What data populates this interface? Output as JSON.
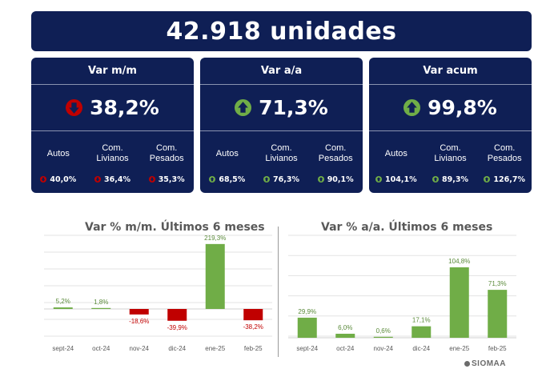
{
  "header": {
    "title": "42.918 unidades"
  },
  "colors": {
    "navy": "#0f1f55",
    "red": "#c00000",
    "green": "#70ad47",
    "text_gray": "#595959"
  },
  "cards": [
    {
      "title": "Var m/m",
      "value": "38,2%",
      "direction": "down",
      "subs": [
        {
          "label": "Autos",
          "value": "40,0%",
          "direction": "down"
        },
        {
          "label": "Com. Livianos",
          "value": "36,4%",
          "direction": "down"
        },
        {
          "label": "Com. Pesados",
          "value": "35,3%",
          "direction": "down"
        }
      ]
    },
    {
      "title": "Var a/a",
      "value": "71,3%",
      "direction": "up",
      "subs": [
        {
          "label": "Autos",
          "value": "68,5%",
          "direction": "up"
        },
        {
          "label": "Com. Livianos",
          "value": "76,3%",
          "direction": "up"
        },
        {
          "label": "Com. Pesados",
          "value": "90,1%",
          "direction": "up"
        }
      ]
    },
    {
      "title": "Var acum",
      "value": "99,8%",
      "direction": "up",
      "subs": [
        {
          "label": "Autos",
          "value": "104,1%",
          "direction": "up"
        },
        {
          "label": "Com. Livianos",
          "value": "89,3%",
          "direction": "up"
        },
        {
          "label": "Com. Pesados",
          "value": "126,7%",
          "direction": "up"
        }
      ]
    }
  ],
  "chart_data": [
    {
      "type": "bar",
      "title": "Var % m/m. Últimos 6 meses",
      "categories": [
        "sept-24",
        "oct-24",
        "nov-24",
        "dic-24",
        "ene-25",
        "feb-25"
      ],
      "values": [
        5.2,
        1.8,
        -18.6,
        -39.9,
        219.3,
        -38.2
      ],
      "data_labels": [
        "5,2%",
        "1,8%",
        "-18,6%",
        "-39,9%",
        "219,3%",
        "-38,2%"
      ],
      "ylim": [
        -60,
        240
      ],
      "grid": true,
      "legend": "none"
    },
    {
      "type": "bar",
      "title": "Var % a/a. Últimos 6 meses",
      "categories": [
        "sept-24",
        "oct-24",
        "nov-24",
        "dic-24",
        "ene-25",
        "feb-25"
      ],
      "values": [
        29.9,
        6.0,
        0.6,
        17.1,
        104.8,
        71.3
      ],
      "data_labels": [
        "29,9%",
        "6,0%",
        "0,6%",
        "17,1%",
        "104,8%",
        "71,3%"
      ],
      "ylim": [
        0,
        120
      ],
      "grid": true,
      "legend": "none"
    }
  ],
  "footer": {
    "logo_text": "SIOMAA"
  }
}
